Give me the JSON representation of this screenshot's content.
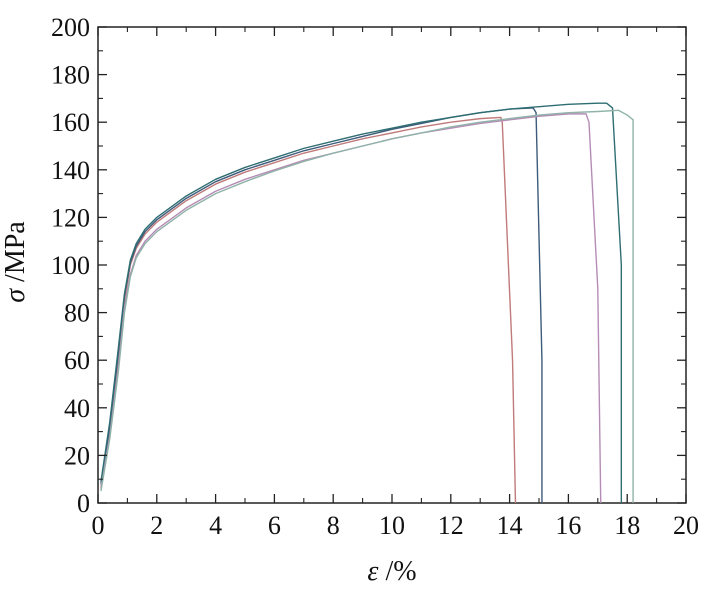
{
  "chart_data": {
    "type": "line",
    "title": "",
    "xlabel": {
      "symbol": "ε",
      "unit": " /%"
    },
    "ylabel": {
      "symbol": "σ",
      "unit": " /MPa"
    },
    "xlim": [
      0,
      20
    ],
    "ylim": [
      0,
      200
    ],
    "x_ticks": [
      0,
      2,
      4,
      6,
      8,
      10,
      12,
      14,
      16,
      18,
      20
    ],
    "y_ticks": [
      0,
      20,
      40,
      60,
      80,
      100,
      120,
      140,
      160,
      180,
      200
    ],
    "grid": false,
    "legend": "none",
    "series": [
      {
        "color": "#c07a7a",
        "points": [
          [
            0.1,
            6
          ],
          [
            0.4,
            30
          ],
          [
            0.7,
            62
          ],
          [
            0.9,
            85
          ],
          [
            1.1,
            100
          ],
          [
            1.3,
            107
          ],
          [
            1.6,
            113
          ],
          [
            2,
            118
          ],
          [
            3,
            127
          ],
          [
            4,
            134
          ],
          [
            5,
            139
          ],
          [
            6,
            143
          ],
          [
            7,
            147
          ],
          [
            8,
            150
          ],
          [
            9,
            153
          ],
          [
            10,
            155.5
          ],
          [
            11,
            158
          ],
          [
            12,
            160
          ],
          [
            13,
            161.5
          ],
          [
            13.7,
            162
          ],
          [
            13.75,
            160
          ],
          [
            14.1,
            60
          ],
          [
            14.2,
            0
          ]
        ]
      },
      {
        "color": "#3d5b7a",
        "points": [
          [
            0.1,
            8
          ],
          [
            0.4,
            32
          ],
          [
            0.7,
            64
          ],
          [
            0.9,
            87
          ],
          [
            1.1,
            101
          ],
          [
            1.3,
            108
          ],
          [
            1.6,
            114
          ],
          [
            2,
            119
          ],
          [
            3,
            128
          ],
          [
            4,
            135
          ],
          [
            5,
            140
          ],
          [
            6,
            144
          ],
          [
            7,
            148
          ],
          [
            8,
            151
          ],
          [
            9,
            154
          ],
          [
            10,
            157
          ],
          [
            11,
            159.5
          ],
          [
            12,
            162
          ],
          [
            13,
            164
          ],
          [
            14,
            165.5
          ],
          [
            14.8,
            166
          ],
          [
            14.9,
            164
          ],
          [
            15.1,
            60
          ],
          [
            15.1,
            0
          ]
        ]
      },
      {
        "color": "#b58cb5",
        "points": [
          [
            0.1,
            7
          ],
          [
            0.4,
            28
          ],
          [
            0.7,
            58
          ],
          [
            0.9,
            82
          ],
          [
            1.1,
            96
          ],
          [
            1.3,
            104
          ],
          [
            1.6,
            110
          ],
          [
            2,
            115
          ],
          [
            3,
            124
          ],
          [
            4,
            131
          ],
          [
            5,
            136
          ],
          [
            6,
            140
          ],
          [
            7,
            144
          ],
          [
            8,
            147
          ],
          [
            9,
            150
          ],
          [
            10,
            153
          ],
          [
            11,
            155.5
          ],
          [
            12,
            157.5
          ],
          [
            13,
            159.5
          ],
          [
            14,
            161
          ],
          [
            15,
            162.5
          ],
          [
            16,
            163.5
          ],
          [
            16.6,
            163.5
          ],
          [
            16.7,
            160
          ],
          [
            17,
            90
          ],
          [
            17.1,
            0
          ]
        ]
      },
      {
        "color": "#2e6e72",
        "points": [
          [
            0.1,
            9
          ],
          [
            0.4,
            34
          ],
          [
            0.7,
            66
          ],
          [
            0.9,
            88
          ],
          [
            1.1,
            102
          ],
          [
            1.3,
            109
          ],
          [
            1.6,
            115
          ],
          [
            2,
            120
          ],
          [
            3,
            129
          ],
          [
            4,
            136
          ],
          [
            5,
            141
          ],
          [
            6,
            145
          ],
          [
            7,
            149
          ],
          [
            8,
            152
          ],
          [
            9,
            155
          ],
          [
            10,
            157.5
          ],
          [
            11,
            160
          ],
          [
            12,
            162
          ],
          [
            13,
            164
          ],
          [
            14,
            165.5
          ],
          [
            15,
            166.5
          ],
          [
            16,
            167.5
          ],
          [
            17,
            168
          ],
          [
            17.3,
            168
          ],
          [
            17.5,
            166
          ],
          [
            17.8,
            100
          ],
          [
            17.8,
            0
          ]
        ]
      },
      {
        "color": "#8fb3a8",
        "points": [
          [
            0.1,
            5
          ],
          [
            0.4,
            27
          ],
          [
            0.7,
            56
          ],
          [
            0.9,
            80
          ],
          [
            1.1,
            95
          ],
          [
            1.3,
            103
          ],
          [
            1.6,
            109
          ],
          [
            2,
            114
          ],
          [
            3,
            123
          ],
          [
            4,
            130
          ],
          [
            5,
            135
          ],
          [
            6,
            139.5
          ],
          [
            7,
            143.5
          ],
          [
            8,
            147
          ],
          [
            9,
            150
          ],
          [
            10,
            153
          ],
          [
            11,
            155.5
          ],
          [
            12,
            158
          ],
          [
            13,
            160
          ],
          [
            14,
            161.5
          ],
          [
            15,
            163
          ],
          [
            16,
            164
          ],
          [
            17,
            164.5
          ],
          [
            17.7,
            165
          ],
          [
            18,
            163
          ],
          [
            18.2,
            161
          ],
          [
            18.2,
            0
          ]
        ]
      }
    ]
  }
}
